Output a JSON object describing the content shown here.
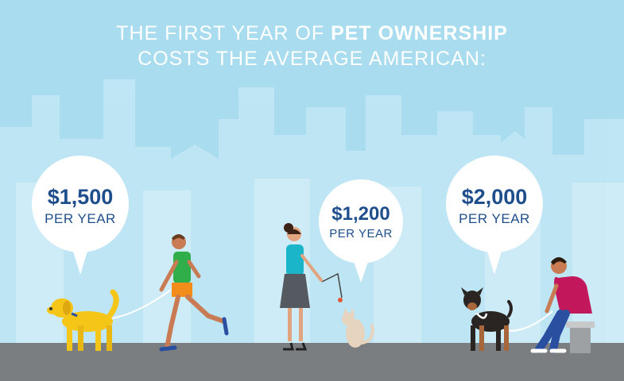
{
  "title": {
    "line1_prefix": "THE FIRST YEAR OF",
    "line1_bold": "PET OWNERSHIP",
    "line2": "COSTS THE AVERAGE AMERICAN:"
  },
  "bubbles": [
    {
      "amount": "$1,500",
      "period": "PER YEAR"
    },
    {
      "amount": "$1,200",
      "period": "PER YEAR"
    },
    {
      "amount": "$2,000",
      "period": "PER YEAR"
    }
  ],
  "colors": {
    "sky": "#a8dcee",
    "buildings": "#c6e9f6",
    "ground": "#7b7e80",
    "amount_text": "#1f4e8c",
    "dog_gold": "#f5c518",
    "shirt_green": "#2fae4a",
    "shorts_orange": "#f28c1b",
    "shirt_teal": "#1ab5c9",
    "shirt_magenta": "#c2185b",
    "jeans_blue": "#2b4fa0"
  }
}
